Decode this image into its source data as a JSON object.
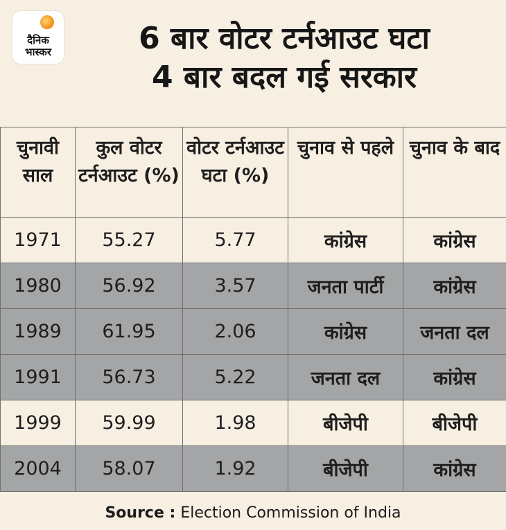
{
  "logo": {
    "line1": "दैनिक",
    "line2": "भास्कर"
  },
  "title": {
    "line1": "6 बार वोटर टर्नआउट घटा",
    "line2": "4 बार बदल गई सरकार"
  },
  "table": {
    "headers": [
      "चुनावी साल",
      "कुल वोटर टर्नआउट (%)",
      "वोटर टर्नआउट घटा (%)",
      "चुनाव से पहले",
      "चुनाव के बाद"
    ],
    "rows": [
      [
        "1971",
        "55.27",
        "5.77",
        "कांग्रेस",
        "कांग्रेस"
      ],
      [
        "1980",
        "56.92",
        "3.57",
        "जनता पार्टी",
        "कांग्रेस"
      ],
      [
        "1989",
        "61.95",
        "2.06",
        "कांग्रेस",
        "जनता दल"
      ],
      [
        "1991",
        "56.73",
        "5.22",
        "जनता दल",
        "कांग्रेस"
      ],
      [
        "1999",
        "59.99",
        "1.98",
        "बीजेपी",
        "बीजेपी"
      ],
      [
        "2004",
        "58.07",
        "1.92",
        "बीजेपी",
        "कांग्रेस"
      ]
    ]
  },
  "source": {
    "label": "Source :",
    "text": " Election Commission of India"
  },
  "colors": {
    "background": "#f7efe2",
    "shaded_row": "#a3a5a6",
    "border": "#6f6f6f"
  }
}
